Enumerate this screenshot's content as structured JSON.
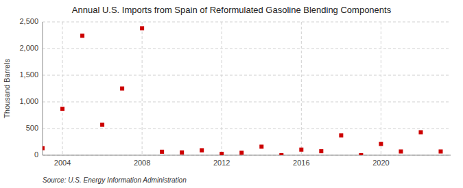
{
  "chart_data": {
    "type": "scatter",
    "title": "Annual U.S. Imports from Spain of Reformulated Gasoline Blending Components",
    "y_label": "Thousand Barrels",
    "source": "Source: U.S. Energy Information Administration",
    "x": [
      2003,
      2004,
      2005,
      2006,
      2007,
      2008,
      2009,
      2010,
      2011,
      2012,
      2013,
      2014,
      2015,
      2016,
      2017,
      2018,
      2019,
      2020,
      2021,
      2022,
      2023
    ],
    "values": [
      130,
      870,
      2240,
      570,
      1250,
      2380,
      65,
      50,
      90,
      25,
      45,
      160,
      0,
      105,
      75,
      370,
      0,
      210,
      70,
      430,
      70
    ],
    "color": "#cc0000",
    "marker": "square",
    "xlim": [
      2003.0,
      2023.5
    ],
    "xticks": [
      2004,
      2008,
      2012,
      2016,
      2020
    ],
    "ylim": [
      0,
      2500
    ],
    "yticks": [
      0,
      500,
      {
        "value": 1000,
        "label": "1,000"
      },
      {
        "value": 1500,
        "label": "1,500"
      },
      {
        "value": 2000,
        "label": "2,000"
      },
      {
        "value": 2500,
        "label": "2,500"
      }
    ],
    "grid": true
  }
}
